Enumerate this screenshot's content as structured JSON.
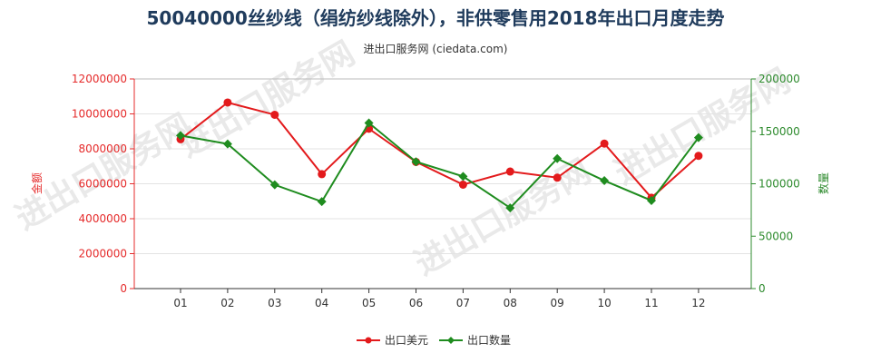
{
  "watermark_text": "进出口服务网",
  "chart_data": {
    "type": "line",
    "title": "50040000丝纱线（绢纺纱线除外），非供零售用2018年出口月度走势",
    "subtitle": "进出口服务网 (ciedata.com)",
    "categories": [
      "01",
      "02",
      "03",
      "04",
      "05",
      "06",
      "07",
      "08",
      "09",
      "10",
      "11",
      "12"
    ],
    "y_left": {
      "label": "金额",
      "lim": [
        0,
        12000000
      ],
      "ticks": [
        0,
        2000000,
        4000000,
        6000000,
        8000000,
        10000000,
        12000000
      ],
      "tick_labels": [
        "0",
        "2000000",
        "4000000",
        "6000000",
        "8000000",
        "10000000",
        "12000000"
      ],
      "color": "#e52b2b"
    },
    "y_right": {
      "label": "数量",
      "lim": [
        0,
        200000
      ],
      "ticks": [
        0,
        50000,
        100000,
        150000,
        200000
      ],
      "tick_labels": [
        "0",
        "50000",
        "100000",
        "150000",
        "200000"
      ],
      "color": "#2e8b2e"
    },
    "series": [
      {
        "name": "出口美元",
        "axis": "left",
        "color": "#e31a1c",
        "marker": "circle",
        "values": [
          8550000,
          10650000,
          9950000,
          6550000,
          9150000,
          7250000,
          5950000,
          6700000,
          6350000,
          8300000,
          5200000,
          7600000
        ]
      },
      {
        "name": "出口数量",
        "axis": "right",
        "color": "#1f8c1f",
        "marker": "diamond",
        "values": [
          146000,
          138000,
          99000,
          83000,
          158000,
          121000,
          107000,
          77000,
          124000,
          103000,
          84000,
          144000
        ]
      }
    ],
    "grid": true,
    "legend_position": "bottom-center"
  }
}
